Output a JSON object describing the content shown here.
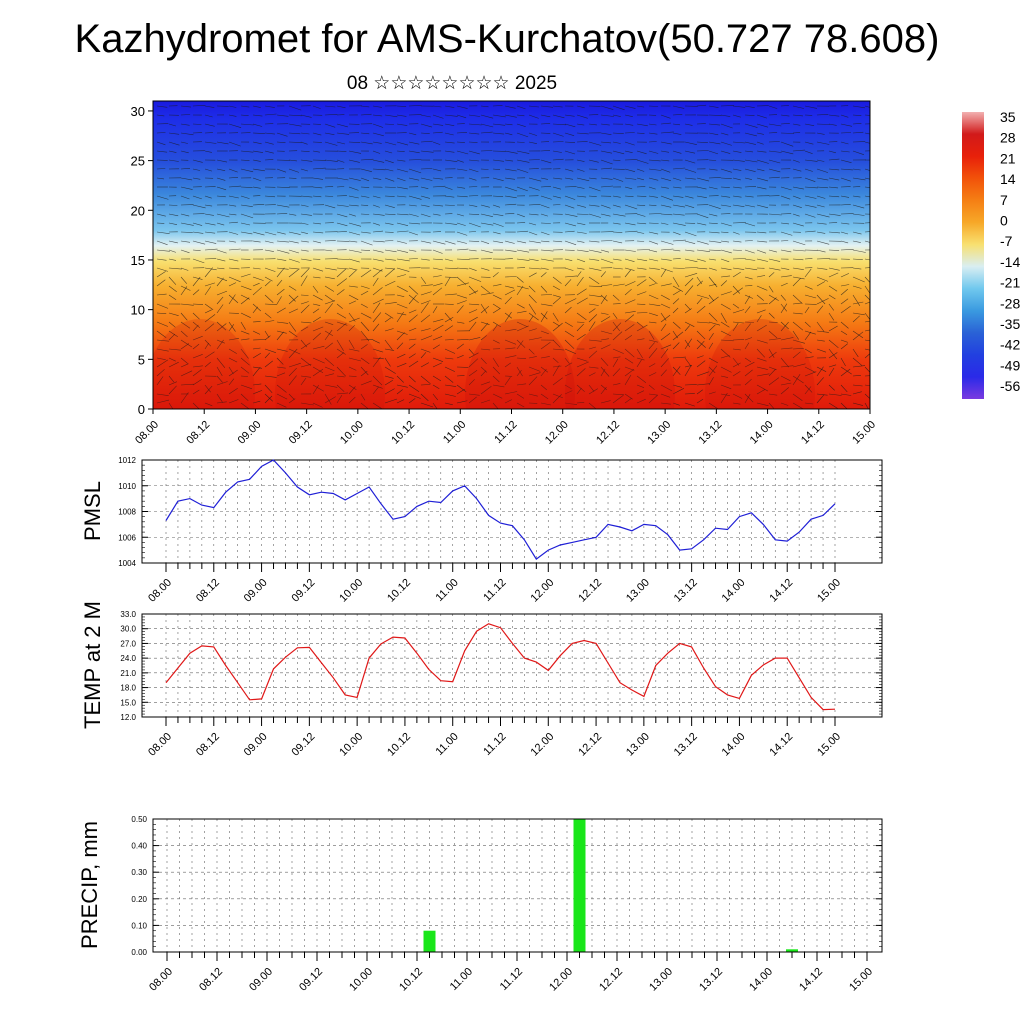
{
  "title": "Kazhydromet for AMS-Kurchatov(50.727 78.608)",
  "subtitle": "08 ☆☆☆☆☆☆☆☆ 2025",
  "colors": {
    "pmsl_line": "#1f1fd6",
    "temp_line": "#e01818",
    "precip_bar": "#19e619",
    "grid": "#666666"
  },
  "chart_data": [
    {
      "type": "heatmap",
      "name_hint": "cross-section",
      "xlabel": "",
      "ylabel": "",
      "x_ticks": [
        "08.00",
        "08.12",
        "09.00",
        "09.12",
        "10.00",
        "10.12",
        "11.00",
        "11.12",
        "12.00",
        "12.12",
        "13.00",
        "13.12",
        "14.00",
        "14.12",
        "15.00"
      ],
      "y_ticks": [
        "0",
        "5",
        "10",
        "15",
        "20",
        "25",
        "30"
      ],
      "ylim": [
        0,
        31
      ],
      "colorbar_labels": [
        "35",
        "28",
        "21",
        "14",
        "7",
        "0",
        "-7",
        "-14",
        "-21",
        "-28",
        "-35",
        "-42",
        "-49",
        "-56"
      ],
      "colorscale": [
        {
          "value": 35,
          "color": "#f2b0b0"
        },
        {
          "value": 28,
          "color": "#d11a1a"
        },
        {
          "value": 21,
          "color": "#e8200a"
        },
        {
          "value": 14,
          "color": "#f2520a"
        },
        {
          "value": 7,
          "color": "#f57f14"
        },
        {
          "value": 0,
          "color": "#f7a828"
        },
        {
          "value": -7,
          "color": "#f8e070"
        },
        {
          "value": -14,
          "color": "#d9eef2"
        },
        {
          "value": -21,
          "color": "#70c8ee"
        },
        {
          "value": -28,
          "color": "#3a9ae0"
        },
        {
          "value": -35,
          "color": "#2a62d6"
        },
        {
          "value": -42,
          "color": "#2240e0"
        },
        {
          "value": -49,
          "color": "#2a2ae8"
        },
        {
          "value": -56,
          "color": "#7a3ae0"
        }
      ]
    },
    {
      "type": "line",
      "ylabel": "PMSL",
      "x_ticks": [
        "08.00",
        "08.12",
        "09.00",
        "09.12",
        "10.00",
        "10.12",
        "11.00",
        "11.12",
        "12.00",
        "12.12",
        "13.00",
        "13.12",
        "14.00",
        "14.12",
        "15.00"
      ],
      "y_ticks": [
        "1004",
        "1006",
        "1008",
        "1010",
        "1012"
      ],
      "ylim": [
        1004,
        1012
      ],
      "x": [
        0,
        3,
        6,
        9,
        12,
        15,
        18,
        21,
        24,
        27,
        30,
        33,
        36,
        39,
        42,
        45,
        48,
        51,
        54,
        57,
        60,
        63,
        66,
        69,
        72,
        75,
        78,
        81,
        84,
        87,
        90,
        93,
        96,
        99,
        102,
        105,
        108,
        111,
        114,
        117,
        120,
        123,
        126,
        129,
        132,
        135,
        138,
        141,
        144,
        147,
        150,
        153,
        156,
        159,
        162,
        165,
        168
      ],
      "values": [
        1007.3,
        1008.8,
        1009.0,
        1008.5,
        1008.3,
        1009.5,
        1010.3,
        1010.5,
        1011.5,
        1012.0,
        1011.0,
        1009.9,
        1009.3,
        1009.5,
        1009.4,
        1008.9,
        1009.4,
        1009.9,
        1008.6,
        1007.4,
        1007.6,
        1008.4,
        1008.8,
        1008.7,
        1009.6,
        1010.0,
        1009.0,
        1007.7,
        1007.1,
        1006.9,
        1005.8,
        1004.3,
        1005.0,
        1005.4,
        1005.6,
        1005.8,
        1006.0,
        1007.0,
        1006.8,
        1006.5,
        1007.0,
        1006.9,
        1006.2,
        1005.0,
        1005.1,
        1005.8,
        1006.7,
        1006.6,
        1007.6,
        1007.9,
        1007.0,
        1005.8,
        1005.7,
        1006.4,
        1007.4,
        1007.7,
        1008.6
      ]
    },
    {
      "type": "line",
      "ylabel": "TEMP at 2 M",
      "x_ticks": [
        "08.00",
        "08.12",
        "09.00",
        "09.12",
        "10.00",
        "10.12",
        "11.00",
        "11.12",
        "12.00",
        "12.12",
        "13.00",
        "13.12",
        "14.00",
        "14.12",
        "15.00"
      ],
      "y_ticks": [
        "12.0",
        "15.0",
        "18.0",
        "21.0",
        "24.0",
        "27.0",
        "30.0",
        "33.0"
      ],
      "ylim": [
        12,
        33
      ],
      "x": [
        0,
        3,
        6,
        9,
        12,
        15,
        18,
        21,
        24,
        27,
        30,
        33,
        36,
        39,
        42,
        45,
        48,
        51,
        54,
        57,
        60,
        63,
        66,
        69,
        72,
        75,
        78,
        81,
        84,
        87,
        90,
        93,
        96,
        99,
        102,
        105,
        108,
        111,
        114,
        117,
        120,
        123,
        126,
        129,
        132,
        135,
        138,
        141,
        144,
        147,
        150,
        153,
        156,
        159,
        162,
        165,
        168
      ],
      "values": [
        19.0,
        22.0,
        25.0,
        26.5,
        26.3,
        22.5,
        19.0,
        15.5,
        15.7,
        21.8,
        24.2,
        26.1,
        26.2,
        23.1,
        20.0,
        16.5,
        16.0,
        24.0,
        26.9,
        28.3,
        28.1,
        25.0,
        21.7,
        19.4,
        19.2,
        25.5,
        29.5,
        31.0,
        30.2,
        27.0,
        24.0,
        23.2,
        21.5,
        24.5,
        27.0,
        27.6,
        27.0,
        23.0,
        19.0,
        17.5,
        16.2,
        22.5,
        25.0,
        27.0,
        26.3,
        22.0,
        18.2,
        16.5,
        15.8,
        20.5,
        22.6,
        24.0,
        24.0,
        20.0,
        16.0,
        13.5,
        13.6
      ]
    },
    {
      "type": "bar",
      "ylabel": "PRECIP, mm",
      "x_ticks": [
        "08.00",
        "08.12",
        "09.00",
        "09.12",
        "10.00",
        "10.12",
        "11.00",
        "11.12",
        "12.00",
        "12.12",
        "13.00",
        "13.12",
        "14.00",
        "14.12",
        "15.00"
      ],
      "y_ticks": [
        "0.00",
        "0.10",
        "0.20",
        "0.30",
        "0.40",
        "0.50"
      ],
      "ylim": [
        0,
        0.5
      ],
      "bars": [
        {
          "x": 63,
          "value": 0.08
        },
        {
          "x": 99,
          "value": 0.5
        },
        {
          "x": 150,
          "value": 0.01
        }
      ]
    }
  ]
}
